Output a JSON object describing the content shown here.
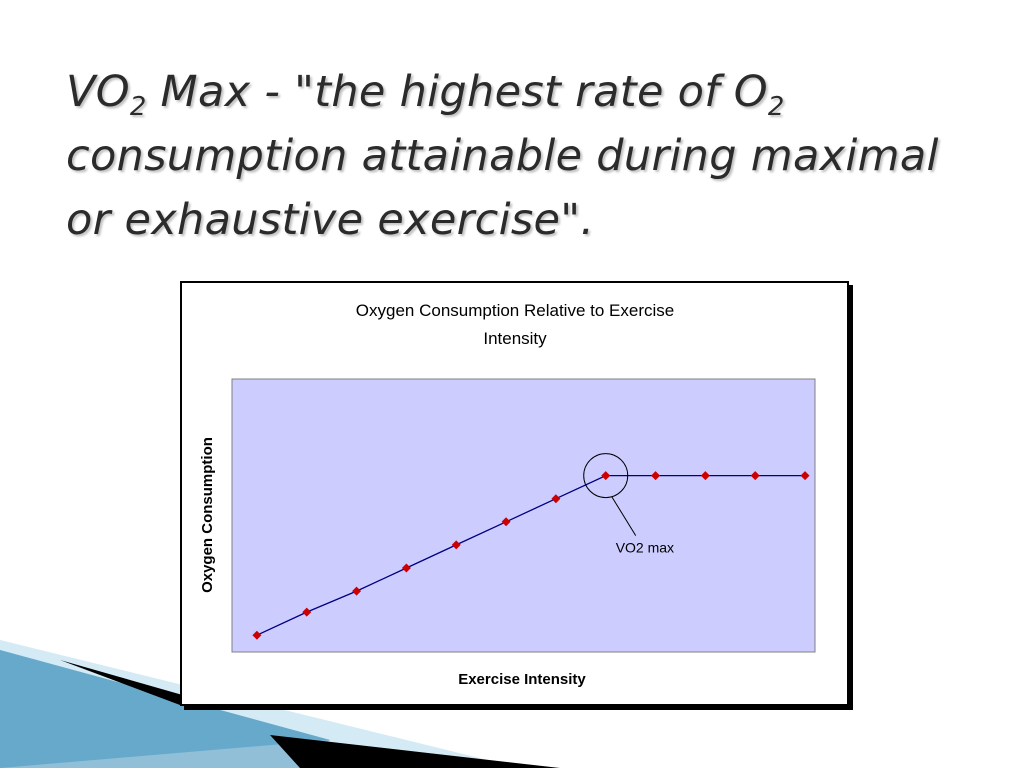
{
  "slide": {
    "title_parts": {
      "p1": "VO",
      "s1": "2",
      "p2": " Max - \"the highest rate of O",
      "s2": "2",
      "p3": " consumption attainable during maximal or exhaustive exercise\"."
    }
  },
  "colors": {
    "plot_background": "#ccccff",
    "series_line": "#000080",
    "marker": "#cc0000",
    "deco_blue": "#2a8fc0",
    "deco_light": "#a9d6ec"
  },
  "chart_data": {
    "type": "line",
    "title_line1": "Oxygen Consumption Relative to Exercise",
    "title_line2": "Intensity",
    "xlabel": "Exercise Intensity",
    "ylabel": "Oxygen Consumption",
    "grid": false,
    "legend": "none",
    "x_ticks_shown": false,
    "y_ticks_shown": false,
    "xlim": [
      0.5,
      12.2
    ],
    "ylim": [
      0,
      13
    ],
    "x": [
      1,
      2,
      3,
      4,
      5,
      6,
      7,
      8,
      9,
      10,
      11,
      12
    ],
    "y": [
      0.8,
      1.9,
      2.9,
      4.0,
      5.1,
      6.2,
      7.3,
      8.4,
      8.4,
      8.4,
      8.4,
      8.4
    ],
    "annotation": {
      "text": "VO2 max",
      "point_index": 7
    }
  }
}
